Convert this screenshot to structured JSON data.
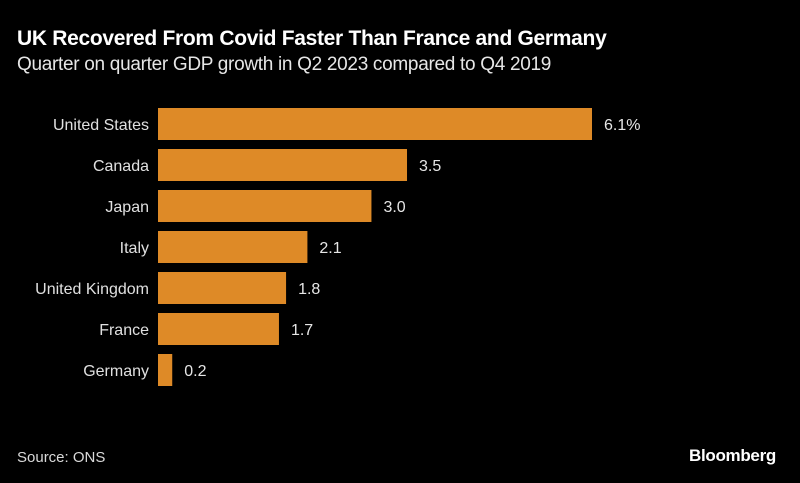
{
  "chart_data": {
    "type": "bar",
    "orientation": "horizontal",
    "title": "UK Recovered From Covid Faster Than France and Germany",
    "subtitle": "Quarter on quarter GDP growth in Q2 2023 compared to Q4 2019",
    "categories": [
      "United States",
      "Canada",
      "Japan",
      "Italy",
      "United Kingdom",
      "France",
      "Germany"
    ],
    "values": [
      6.1,
      3.5,
      3.0,
      2.1,
      1.8,
      1.7,
      0.2
    ],
    "data_labels": [
      "6.1%",
      "3.5",
      "3.0",
      "2.1",
      "1.8",
      "1.7",
      "0.2"
    ],
    "xlabel": "",
    "ylabel": "",
    "xlim": [
      0,
      6.1
    ],
    "grid": false,
    "legend": "none",
    "bar_color": "#de8a27",
    "source": "Source: ONS",
    "brand": "Bloomberg"
  }
}
